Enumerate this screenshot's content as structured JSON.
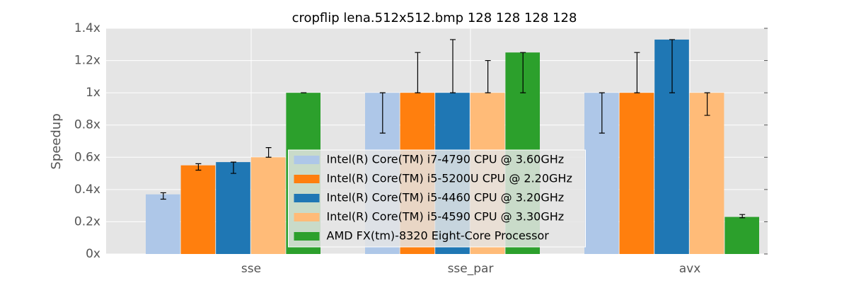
{
  "chart_data": {
    "type": "bar",
    "title": "cropflip lena.512x512.bmp 128 128 128 128",
    "y_label": "Speedup",
    "categories": [
      "sse",
      "sse_par",
      "avx"
    ],
    "series": [
      {
        "name": "Intel(R) Core(TM) i7-4790 CPU @ 3.60GHz",
        "color": "#aec7e8",
        "values": [
          0.37,
          1.0,
          1.0
        ],
        "error_low": [
          0.34,
          0.75,
          0.75
        ],
        "error_high": [
          0.38,
          1.0,
          1.0
        ]
      },
      {
        "name": "Intel(R) Core(TM) i5-5200U CPU @ 2.20GHz",
        "color": "#ff7f0e",
        "values": [
          0.55,
          1.0,
          1.0
        ],
        "error_low": [
          0.52,
          1.0,
          1.0
        ],
        "error_high": [
          0.56,
          1.25,
          1.25
        ]
      },
      {
        "name": "Intel(R) Core(TM) i5-4460  CPU @ 3.20GHz",
        "color": "#1f77b4",
        "values": [
          0.57,
          1.0,
          1.33
        ],
        "error_low": [
          0.5,
          1.0,
          1.0
        ],
        "error_high": [
          0.57,
          1.33,
          1.33
        ]
      },
      {
        "name": "Intel(R) Core(TM) i5-4590 CPU @ 3.30GHz",
        "color": "#ffbb78",
        "values": [
          0.6,
          1.0,
          1.0
        ],
        "error_low": [
          0.6,
          1.0,
          0.86
        ],
        "error_high": [
          0.66,
          1.2,
          1.0
        ]
      },
      {
        "name": "AMD FX(tm)-8320 Eight-Core Processor",
        "color": "#2ca02c",
        "values": [
          1.0,
          1.25,
          0.23
        ],
        "error_low": [
          1.0,
          1.0,
          0.225
        ],
        "error_high": [
          1.0,
          1.25,
          0.245
        ]
      }
    ],
    "ylim": [
      0,
      1.4
    ],
    "yticks": [
      {
        "value": 0,
        "label": "0x"
      },
      {
        "value": 0.2,
        "label": "0.2x"
      },
      {
        "value": 0.4,
        "label": "0.4x"
      },
      {
        "value": 0.6,
        "label": "0.6x"
      },
      {
        "value": 0.8,
        "label": "0.8x"
      },
      {
        "value": 1,
        "label": "1x"
      },
      {
        "value": 1.2,
        "label": "1.2x"
      },
      {
        "value": 1.4,
        "label": "1.4x"
      }
    ],
    "grid": true,
    "legend": "lower center"
  }
}
